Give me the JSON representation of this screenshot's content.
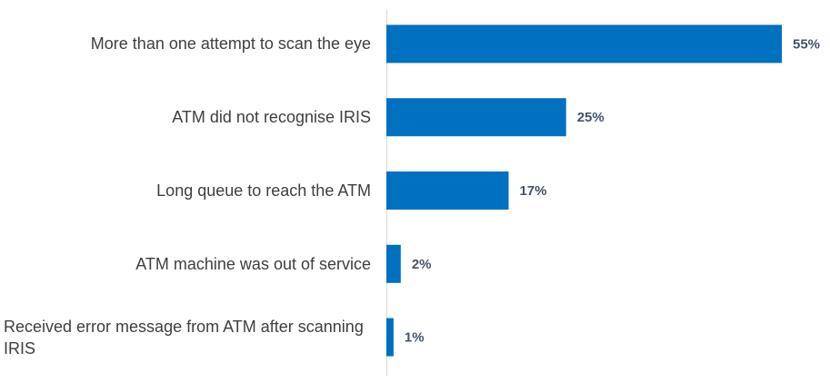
{
  "chart_data": {
    "type": "bar",
    "orientation": "horizontal",
    "categories": [
      "More than one attempt to scan the eye",
      "ATM did not recognise IRIS",
      "Long queue to reach the ATM",
      "ATM machine was out of service",
      "Received error message from ATM after scanning IRIS"
    ],
    "values": [
      55,
      25,
      17,
      2,
      1
    ],
    "value_labels": [
      "55%",
      "25%",
      "17%",
      "2%",
      "1%"
    ],
    "color": "#0070c0"
  }
}
